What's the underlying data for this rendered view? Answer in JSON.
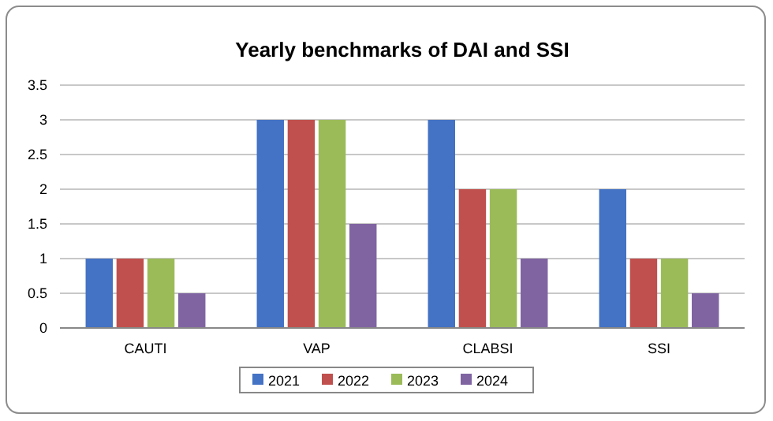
{
  "chart_data": {
    "type": "bar",
    "title": "Yearly benchmarks of DAI and SSI",
    "categories": [
      "CAUTI",
      "VAP",
      "CLABSI",
      "SSI"
    ],
    "series": [
      {
        "name": "2021",
        "color": "#4472c4",
        "values": [
          1,
          3,
          3,
          2
        ]
      },
      {
        "name": "2022",
        "color": "#c0504d",
        "values": [
          1,
          3,
          2,
          1
        ]
      },
      {
        "name": "2023",
        "color": "#9bbb59",
        "values": [
          1,
          3,
          2,
          1
        ]
      },
      {
        "name": "2024",
        "color": "#8064a2",
        "values": [
          0.5,
          1.5,
          1,
          0.5
        ]
      }
    ],
    "ylim": [
      0,
      3.5
    ],
    "yticks": [
      0,
      0.5,
      1,
      1.5,
      2,
      2.5,
      3,
      3.5
    ],
    "grid": "y",
    "legend": "bottom"
  }
}
